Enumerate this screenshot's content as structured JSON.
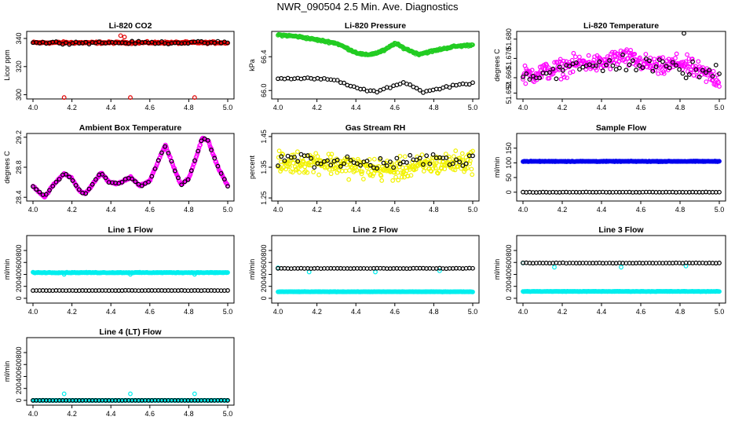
{
  "figure_title": "NWR_090504  2.5 Min. Ave. Diagnostics",
  "colors": {
    "red": "#e00000",
    "green": "#22cc22",
    "magenta": "#ff00ff",
    "yellow": "#f2f200",
    "blue": "#0000ee",
    "cyan": "#00eeee",
    "black": "#000000"
  },
  "chart_data": [
    {
      "type": "scatter",
      "title": "Li-820 CO2",
      "ylabel": "Licor ppm",
      "xlim": [
        4.0,
        5.0
      ],
      "ylim": [
        297,
        345
      ],
      "xticks": [
        "4.0",
        "4.2",
        "4.4",
        "4.6",
        "4.8",
        "5.0"
      ],
      "yticks": [
        "300",
        "320",
        "340"
      ],
      "series": [
        {
          "name": "main",
          "color": "red",
          "base": 337,
          "noise": 0.6,
          "amp": 0,
          "period": 0.25,
          "n": 250,
          "outliers": [
            [
              4.16,
              298
            ],
            [
              4.5,
              298
            ],
            [
              4.83,
              298
            ],
            [
              4.45,
              342
            ],
            [
              4.47,
              341
            ]
          ]
        },
        {
          "name": "secondary",
          "color": "black",
          "base": 337,
          "noise": 0.8,
          "amp": 0,
          "period": 0.25,
          "n": 60,
          "outliers": []
        }
      ]
    },
    {
      "type": "scatter",
      "title": "Li-820 Pressure",
      "ylabel": "kPa",
      "xlim": [
        4.0,
        5.0
      ],
      "ylim": [
        65.9,
        66.7
      ],
      "xticks": [
        "4.0",
        "4.2",
        "4.4",
        "4.6",
        "4.8",
        "5.0"
      ],
      "yticks": [
        "66.0",
        "66.4"
      ],
      "series": [
        {
          "name": "main",
          "color": "green",
          "curve": [
            [
              4.0,
              66.66
            ],
            [
              4.1,
              66.64
            ],
            [
              4.2,
              66.6
            ],
            [
              4.3,
              66.56
            ],
            [
              4.4,
              66.45
            ],
            [
              4.45,
              66.42
            ],
            [
              4.5,
              66.44
            ],
            [
              4.55,
              66.48
            ],
            [
              4.6,
              66.56
            ],
            [
              4.65,
              66.5
            ],
            [
              4.72,
              66.43
            ],
            [
              4.8,
              66.47
            ],
            [
              4.9,
              66.52
            ],
            [
              5.0,
              66.54
            ]
          ],
          "noise": 0.01,
          "n": 280,
          "outliers": []
        },
        {
          "name": "secondary",
          "color": "black",
          "curve": [
            [
              4.0,
              66.15
            ],
            [
              4.1,
              66.14
            ],
            [
              4.2,
              66.14
            ],
            [
              4.3,
              66.12
            ],
            [
              4.4,
              66.03
            ],
            [
              4.5,
              65.98
            ],
            [
              4.6,
              66.06
            ],
            [
              4.65,
              66.1
            ],
            [
              4.75,
              65.98
            ],
            [
              4.9,
              66.06
            ],
            [
              5.0,
              66.09
            ]
          ],
          "noise": 0.01,
          "n": 60,
          "outliers": []
        }
      ]
    },
    {
      "type": "scatter",
      "title": "Li-820 Temperature",
      "ylabel": "degrees C",
      "xlim": [
        4.0,
        5.0
      ],
      "ylim": [
        51.649,
        51.684
      ],
      "xticks": [
        "4.0",
        "4.2",
        "4.4",
        "4.6",
        "4.8",
        "5.0"
      ],
      "yticks": [
        "51.652",
        "51.660",
        "51.670",
        "51.680"
      ],
      "series": [
        {
          "name": "main",
          "color": "magenta",
          "curve": [
            [
              4.0,
              51.661
            ],
            [
              4.2,
              51.665
            ],
            [
              4.3,
              51.668
            ],
            [
              4.4,
              51.667
            ],
            [
              4.5,
              51.671
            ],
            [
              4.6,
              51.668
            ],
            [
              4.7,
              51.665
            ],
            [
              4.8,
              51.668
            ],
            [
              4.9,
              51.663
            ],
            [
              5.0,
              51.659
            ]
          ],
          "noise": 0.004,
          "n": 300,
          "outliers": []
        },
        {
          "name": "secondary",
          "color": "black",
          "curve": [
            [
              4.0,
              51.661
            ],
            [
              4.5,
              51.668
            ],
            [
              5.0,
              51.662
            ]
          ],
          "noise": 0.004,
          "n": 60,
          "outliers": [
            [
              4.82,
              51.683
            ]
          ]
        }
      ]
    },
    {
      "type": "scatter",
      "title": "Ambient Box Temperature",
      "ylabel": "degrees C",
      "xlim": [
        4.0,
        5.0
      ],
      "ylim": [
        28.35,
        29.25
      ],
      "xticks": [
        "4.0",
        "4.2",
        "4.4",
        "4.6",
        "4.8",
        "5.0"
      ],
      "yticks": [
        "28.4",
        "28.8",
        "29.2"
      ],
      "series": [
        {
          "name": "main",
          "color": "magenta",
          "curve": [
            [
              4.0,
              28.55
            ],
            [
              4.06,
              28.4
            ],
            [
              4.1,
              28.55
            ],
            [
              4.16,
              28.72
            ],
            [
              4.2,
              28.65
            ],
            [
              4.24,
              28.48
            ],
            [
              4.27,
              28.45
            ],
            [
              4.3,
              28.55
            ],
            [
              4.35,
              28.73
            ],
            [
              4.39,
              28.6
            ],
            [
              4.44,
              28.58
            ],
            [
              4.5,
              28.67
            ],
            [
              4.55,
              28.55
            ],
            [
              4.6,
              28.62
            ],
            [
              4.63,
              28.8
            ],
            [
              4.68,
              29.1
            ],
            [
              4.73,
              28.75
            ],
            [
              4.76,
              28.57
            ],
            [
              4.8,
              28.65
            ],
            [
              4.84,
              28.95
            ],
            [
              4.87,
              29.2
            ],
            [
              4.9,
              29.15
            ],
            [
              4.95,
              28.8
            ],
            [
              5.0,
              28.55
            ]
          ],
          "noise": 0.01,
          "n": 320,
          "outliers": []
        },
        {
          "name": "secondary",
          "color": "black",
          "curve": [
            [
              4.0,
              28.55
            ],
            [
              4.06,
              28.4
            ],
            [
              4.1,
              28.55
            ],
            [
              4.16,
              28.72
            ],
            [
              4.2,
              28.65
            ],
            [
              4.24,
              28.48
            ],
            [
              4.27,
              28.45
            ],
            [
              4.3,
              28.55
            ],
            [
              4.35,
              28.73
            ],
            [
              4.39,
              28.6
            ],
            [
              4.44,
              28.58
            ],
            [
              4.5,
              28.67
            ],
            [
              4.55,
              28.55
            ],
            [
              4.6,
              28.62
            ],
            [
              4.63,
              28.8
            ],
            [
              4.68,
              29.1
            ],
            [
              4.73,
              28.75
            ],
            [
              4.76,
              28.57
            ],
            [
              4.8,
              28.65
            ],
            [
              4.84,
              28.95
            ],
            [
              4.87,
              29.2
            ],
            [
              4.9,
              29.15
            ],
            [
              4.95,
              28.8
            ],
            [
              5.0,
              28.55
            ]
          ],
          "noise": 0.01,
          "n": 60,
          "outliers": []
        }
      ]
    },
    {
      "type": "scatter",
      "title": "Gas Stream RH",
      "ylabel": "percent",
      "xlim": [
        4.0,
        5.0
      ],
      "ylim": [
        1.24,
        1.46
      ],
      "xticks": [
        "4.0",
        "4.2",
        "4.4",
        "4.6",
        "4.8",
        "5.0"
      ],
      "yticks": [
        "1.25",
        "1.35",
        "1.45"
      ],
      "series": [
        {
          "name": "main",
          "color": "yellow",
          "curve": [
            [
              4.0,
              1.36
            ],
            [
              4.2,
              1.37
            ],
            [
              4.4,
              1.35
            ],
            [
              4.6,
              1.34
            ],
            [
              4.8,
              1.36
            ],
            [
              5.0,
              1.37
            ]
          ],
          "noise": 0.03,
          "n": 320,
          "outliers": []
        },
        {
          "name": "secondary",
          "color": "black",
          "curve": [
            [
              4.0,
              1.38
            ],
            [
              4.5,
              1.36
            ],
            [
              5.0,
              1.38
            ]
          ],
          "noise": 0.02,
          "n": 60,
          "outliers": []
        }
      ]
    },
    {
      "type": "scatter",
      "title": "Sample Flow",
      "ylabel": "ml/min",
      "xlim": [
        4.0,
        5.0
      ],
      "ylim": [
        -30,
        200
      ],
      "xticks": [
        "4.0",
        "4.2",
        "4.4",
        "4.6",
        "4.8",
        "5.0"
      ],
      "yticks": [
        "0",
        "50",
        "100",
        "150"
      ],
      "series": [
        {
          "name": "main",
          "color": "blue",
          "base": 105,
          "noise": 1,
          "amp": 0,
          "period": 0.25,
          "n": 320,
          "outliers": []
        },
        {
          "name": "secondary",
          "color": "black",
          "base": 0,
          "noise": 0.5,
          "amp": 0,
          "period": 0.25,
          "n": 60,
          "outliers": []
        }
      ]
    },
    {
      "type": "scatter",
      "title": "Line 1 Flow",
      "ylabel": "ml/min",
      "xlim": [
        4.0,
        5.0
      ],
      "ylim": [
        -80,
        1050
      ],
      "xticks": [
        "4.0",
        "4.2",
        "4.4",
        "4.6",
        "4.8",
        "5.0"
      ],
      "yticks": [
        "0",
        "200",
        "400",
        "600",
        "800"
      ],
      "series": [
        {
          "name": "main",
          "color": "cyan",
          "base": 430,
          "noise": 5,
          "amp": 0,
          "period": 0.25,
          "n": 300,
          "outliers": [
            [
              4.16,
              400
            ],
            [
              4.5,
              400
            ],
            [
              4.83,
              400
            ]
          ]
        },
        {
          "name": "secondary",
          "color": "black",
          "base": 130,
          "noise": 2,
          "amp": 0,
          "period": 0.25,
          "n": 60,
          "outliers": []
        }
      ]
    },
    {
      "type": "scatter",
      "title": "Line 2 Flow",
      "ylabel": "ml/min",
      "xlim": [
        4.0,
        5.0
      ],
      "ylim": [
        -80,
        1050
      ],
      "xticks": [
        "4.0",
        "4.2",
        "4.4",
        "4.6",
        "4.8",
        "5.0"
      ],
      "yticks": [
        "0",
        "200",
        "400",
        "600",
        "800"
      ],
      "series": [
        {
          "name": "main",
          "color": "cyan",
          "base": 110,
          "noise": 3,
          "amp": 0,
          "period": 0.25,
          "n": 300,
          "outliers": [
            [
              4.0,
              510
            ],
            [
              4.16,
              440
            ],
            [
              4.5,
              440
            ],
            [
              4.83,
              460
            ]
          ]
        },
        {
          "name": "secondary",
          "color": "black",
          "base": 500,
          "noise": 3,
          "amp": 0,
          "period": 0.25,
          "n": 60,
          "outliers": []
        }
      ]
    },
    {
      "type": "scatter",
      "title": "Line 3 Flow",
      "ylabel": "ml/min",
      "xlim": [
        4.0,
        5.0
      ],
      "ylim": [
        -80,
        1050
      ],
      "xticks": [
        "4.0",
        "4.2",
        "4.4",
        "4.6",
        "4.8",
        "5.0"
      ],
      "yticks": [
        "0",
        "200",
        "400",
        "600",
        "800"
      ],
      "series": [
        {
          "name": "main",
          "color": "cyan",
          "base": 115,
          "noise": 3,
          "amp": 0,
          "period": 0.25,
          "n": 300,
          "outliers": [
            [
              4.0,
              590
            ],
            [
              4.16,
              520
            ],
            [
              4.5,
              520
            ],
            [
              4.83,
              540
            ]
          ]
        },
        {
          "name": "secondary",
          "color": "black",
          "base": 590,
          "noise": 3,
          "amp": 0,
          "period": 0.25,
          "n": 60,
          "outliers": []
        }
      ]
    },
    {
      "type": "scatter",
      "title": "Line 4 (LT) Flow",
      "ylabel": "ml/min",
      "xlim": [
        4.0,
        5.0
      ],
      "ylim": [
        -80,
        1050
      ],
      "xticks": [
        "4.0",
        "4.2",
        "4.4",
        "4.6",
        "4.8",
        "5.0"
      ],
      "yticks": [
        "0",
        "200",
        "400",
        "600",
        "800"
      ],
      "series": [
        {
          "name": "main",
          "color": "cyan",
          "base": 0,
          "noise": 2,
          "amp": 0,
          "period": 0.25,
          "n": 300,
          "outliers": [
            [
              4.16,
              110
            ],
            [
              4.5,
              110
            ],
            [
              4.83,
              110
            ]
          ]
        },
        {
          "name": "secondary",
          "color": "black",
          "base": 0,
          "noise": 1,
          "amp": 0,
          "period": 0.25,
          "n": 60,
          "outliers": []
        }
      ]
    }
  ]
}
